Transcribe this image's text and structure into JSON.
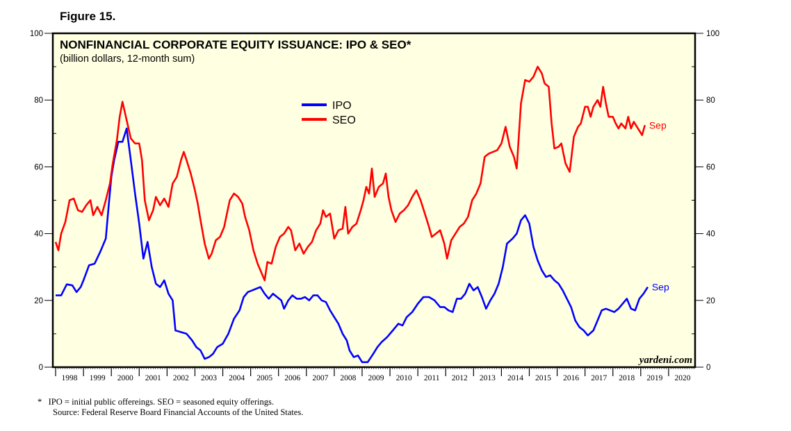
{
  "figure_label": "Figure 15.",
  "footnote": "*   IPO = initial public offereings. SEO = seasoned equity offerings.",
  "source": "Source: Federal Reserve Board Financial Accounts of the United States.",
  "watermark": "yardeni.com",
  "colors": {
    "plot_bg": "#ffffe1",
    "ipo": "#0000ff",
    "seo": "#ff0000",
    "frame": "#000000"
  },
  "chart_data": {
    "type": "line",
    "title": "NONFINANCIAL CORPORATE EQUITY ISSUANCE: IPO & SEO*",
    "subtitle": "(billion dollars, 12-month sum)",
    "xlabel": "",
    "ylabel": "",
    "xlim": [
      1997.9,
      2020.95
    ],
    "ylim": [
      0,
      100
    ],
    "y_ticks": [
      0,
      20,
      40,
      60,
      80,
      100
    ],
    "x_tick_labels": [
      "1998",
      "1999",
      "2000",
      "2001",
      "2002",
      "2003",
      "2004",
      "2005",
      "2006",
      "2007",
      "2008",
      "2009",
      "2010",
      "2011",
      "2012",
      "2013",
      "2014",
      "2015",
      "2016",
      "2017",
      "2018",
      "2019",
      "2020"
    ],
    "legend": [
      "IPO",
      "SEO"
    ],
    "legend_position": "top-center",
    "series": [
      {
        "name": "IPO",
        "end_label": "Sep",
        "points": [
          [
            1998.0,
            21.5
          ],
          [
            1998.2,
            21.5
          ],
          [
            1998.4,
            24.8
          ],
          [
            1998.6,
            24.5
          ],
          [
            1998.75,
            22.5
          ],
          [
            1998.9,
            24
          ],
          [
            1999.0,
            26
          ],
          [
            1999.2,
            30.5
          ],
          [
            1999.4,
            31
          ],
          [
            1999.6,
            34.5
          ],
          [
            1999.8,
            38.5
          ],
          [
            1999.9,
            48
          ],
          [
            2000.0,
            57
          ],
          [
            2000.1,
            62
          ],
          [
            2000.25,
            67.5
          ],
          [
            2000.4,
            67.5
          ],
          [
            2000.55,
            71.5
          ],
          [
            2000.7,
            62
          ],
          [
            2000.85,
            52
          ],
          [
            2001.0,
            43
          ],
          [
            2001.15,
            32.5
          ],
          [
            2001.3,
            37.5
          ],
          [
            2001.45,
            30
          ],
          [
            2001.6,
            25
          ],
          [
            2001.75,
            24
          ],
          [
            2001.9,
            26
          ],
          [
            2002.05,
            22
          ],
          [
            2002.2,
            20
          ],
          [
            2002.3,
            11
          ],
          [
            2002.5,
            10.5
          ],
          [
            2002.7,
            10
          ],
          [
            2002.9,
            8
          ],
          [
            2003.05,
            6
          ],
          [
            2003.2,
            5
          ],
          [
            2003.35,
            2.5
          ],
          [
            2003.5,
            3
          ],
          [
            2003.65,
            4
          ],
          [
            2003.8,
            6
          ],
          [
            2004.0,
            7
          ],
          [
            2004.2,
            10
          ],
          [
            2004.4,
            14.5
          ],
          [
            2004.6,
            17
          ],
          [
            2004.75,
            21
          ],
          [
            2004.9,
            22.5
          ],
          [
            2005.05,
            23
          ],
          [
            2005.2,
            23.5
          ],
          [
            2005.35,
            24
          ],
          [
            2005.5,
            22
          ],
          [
            2005.65,
            20.5
          ],
          [
            2005.8,
            22
          ],
          [
            2005.95,
            21
          ],
          [
            2006.1,
            20
          ],
          [
            2006.2,
            17.5
          ],
          [
            2006.35,
            20
          ],
          [
            2006.5,
            21.5
          ],
          [
            2006.65,
            20.5
          ],
          [
            2006.8,
            20.5
          ],
          [
            2006.95,
            21
          ],
          [
            2007.1,
            20
          ],
          [
            2007.25,
            21.5
          ],
          [
            2007.4,
            21.5
          ],
          [
            2007.55,
            20
          ],
          [
            2007.7,
            19.5
          ],
          [
            2007.85,
            17
          ],
          [
            2008.0,
            15
          ],
          [
            2008.15,
            13
          ],
          [
            2008.3,
            10
          ],
          [
            2008.45,
            8
          ],
          [
            2008.55,
            5
          ],
          [
            2008.7,
            3
          ],
          [
            2008.85,
            3.5
          ],
          [
            2009.0,
            1.5
          ],
          [
            2009.2,
            1.5
          ],
          [
            2009.4,
            4
          ],
          [
            2009.55,
            6
          ],
          [
            2009.7,
            7.5
          ],
          [
            2009.9,
            9
          ],
          [
            2010.1,
            11
          ],
          [
            2010.3,
            13
          ],
          [
            2010.45,
            12.5
          ],
          [
            2010.6,
            15
          ],
          [
            2010.8,
            16.5
          ],
          [
            2011.0,
            19
          ],
          [
            2011.2,
            21
          ],
          [
            2011.4,
            21
          ],
          [
            2011.6,
            20
          ],
          [
            2011.8,
            18
          ],
          [
            2011.95,
            18
          ],
          [
            2012.1,
            17
          ],
          [
            2012.25,
            16.5
          ],
          [
            2012.4,
            20.5
          ],
          [
            2012.55,
            20.5
          ],
          [
            2012.7,
            22
          ],
          [
            2012.85,
            25
          ],
          [
            2013.0,
            23
          ],
          [
            2013.15,
            24
          ],
          [
            2013.3,
            21
          ],
          [
            2013.45,
            17.5
          ],
          [
            2013.6,
            20
          ],
          [
            2013.75,
            22
          ],
          [
            2013.9,
            25
          ],
          [
            2014.05,
            30
          ],
          [
            2014.2,
            37
          ],
          [
            2014.4,
            38.5
          ],
          [
            2014.55,
            40
          ],
          [
            2014.7,
            44
          ],
          [
            2014.85,
            45.5
          ],
          [
            2015.0,
            43
          ],
          [
            2015.15,
            36
          ],
          [
            2015.3,
            32
          ],
          [
            2015.45,
            29
          ],
          [
            2015.6,
            27
          ],
          [
            2015.75,
            27.5
          ],
          [
            2015.9,
            26
          ],
          [
            2016.05,
            25
          ],
          [
            2016.2,
            23
          ],
          [
            2016.35,
            20.5
          ],
          [
            2016.5,
            18
          ],
          [
            2016.65,
            14
          ],
          [
            2016.8,
            12
          ],
          [
            2016.95,
            11
          ],
          [
            2017.1,
            9.5
          ],
          [
            2017.3,
            11
          ],
          [
            2017.45,
            14
          ],
          [
            2017.6,
            17
          ],
          [
            2017.75,
            17.5
          ],
          [
            2017.9,
            17
          ],
          [
            2018.05,
            16.5
          ],
          [
            2018.2,
            17.5
          ],
          [
            2018.35,
            19
          ],
          [
            2018.5,
            20.5
          ],
          [
            2018.65,
            17.5
          ],
          [
            2018.8,
            17
          ],
          [
            2018.95,
            20.5
          ],
          [
            2019.1,
            22
          ],
          [
            2019.25,
            24
          ]
        ]
      },
      {
        "name": "SEO",
        "end_label": "Sep",
        "points": [
          [
            1998.0,
            37.5
          ],
          [
            1998.1,
            35
          ],
          [
            1998.2,
            40
          ],
          [
            1998.35,
            43.5
          ],
          [
            1998.5,
            50
          ],
          [
            1998.65,
            50.5
          ],
          [
            1998.8,
            47
          ],
          [
            1998.95,
            46.5
          ],
          [
            1999.1,
            48.5
          ],
          [
            1999.25,
            50
          ],
          [
            1999.35,
            45.5
          ],
          [
            1999.5,
            48
          ],
          [
            1999.65,
            45.5
          ],
          [
            1999.8,
            50
          ],
          [
            1999.95,
            55
          ],
          [
            2000.05,
            61
          ],
          [
            2000.2,
            68
          ],
          [
            2000.3,
            75
          ],
          [
            2000.4,
            79.5
          ],
          [
            2000.55,
            74
          ],
          [
            2000.7,
            68.5
          ],
          [
            2000.85,
            67
          ],
          [
            2001.0,
            67
          ],
          [
            2001.1,
            62
          ],
          [
            2001.2,
            50
          ],
          [
            2001.35,
            44
          ],
          [
            2001.5,
            47
          ],
          [
            2001.6,
            51
          ],
          [
            2001.75,
            48.5
          ],
          [
            2001.9,
            50.5
          ],
          [
            2002.05,
            48
          ],
          [
            2002.2,
            55
          ],
          [
            2002.35,
            57
          ],
          [
            2002.5,
            62
          ],
          [
            2002.6,
            64.5
          ],
          [
            2002.7,
            62
          ],
          [
            2002.85,
            58
          ],
          [
            2003.0,
            53
          ],
          [
            2003.1,
            49
          ],
          [
            2003.2,
            44
          ],
          [
            2003.35,
            37
          ],
          [
            2003.5,
            32.5
          ],
          [
            2003.6,
            34
          ],
          [
            2003.75,
            38
          ],
          [
            2003.9,
            39
          ],
          [
            2004.05,
            42
          ],
          [
            2004.15,
            46
          ],
          [
            2004.25,
            50
          ],
          [
            2004.4,
            52
          ],
          [
            2004.55,
            51
          ],
          [
            2004.7,
            49
          ],
          [
            2004.8,
            45
          ],
          [
            2004.95,
            41
          ],
          [
            2005.1,
            35
          ],
          [
            2005.25,
            31
          ],
          [
            2005.4,
            28
          ],
          [
            2005.5,
            26
          ],
          [
            2005.6,
            31.5
          ],
          [
            2005.75,
            31
          ],
          [
            2005.9,
            36
          ],
          [
            2006.05,
            39
          ],
          [
            2006.2,
            40
          ],
          [
            2006.35,
            42
          ],
          [
            2006.45,
            41
          ],
          [
            2006.6,
            35
          ],
          [
            2006.75,
            37
          ],
          [
            2006.9,
            34
          ],
          [
            2007.05,
            36
          ],
          [
            2007.2,
            37.5
          ],
          [
            2007.35,
            41
          ],
          [
            2007.5,
            43
          ],
          [
            2007.6,
            47
          ],
          [
            2007.7,
            45
          ],
          [
            2007.85,
            46
          ],
          [
            2008.0,
            38.5
          ],
          [
            2008.15,
            41
          ],
          [
            2008.3,
            41.5
          ],
          [
            2008.4,
            48
          ],
          [
            2008.5,
            40
          ],
          [
            2008.65,
            42
          ],
          [
            2008.8,
            43
          ],
          [
            2008.95,
            47
          ],
          [
            2009.05,
            50
          ],
          [
            2009.15,
            54
          ],
          [
            2009.25,
            52
          ],
          [
            2009.35,
            59.5
          ],
          [
            2009.45,
            51
          ],
          [
            2009.6,
            54
          ],
          [
            2009.75,
            55
          ],
          [
            2009.85,
            58
          ],
          [
            2009.95,
            51
          ],
          [
            2010.05,
            47
          ],
          [
            2010.2,
            43.5
          ],
          [
            2010.35,
            46
          ],
          [
            2010.5,
            47
          ],
          [
            2010.65,
            48.5
          ],
          [
            2010.8,
            51
          ],
          [
            2010.95,
            53
          ],
          [
            2011.1,
            50
          ],
          [
            2011.25,
            46
          ],
          [
            2011.4,
            42
          ],
          [
            2011.5,
            39
          ],
          [
            2011.65,
            40
          ],
          [
            2011.8,
            41
          ],
          [
            2011.95,
            37
          ],
          [
            2012.05,
            32.5
          ],
          [
            2012.2,
            38
          ],
          [
            2012.35,
            40
          ],
          [
            2012.5,
            42
          ],
          [
            2012.65,
            43
          ],
          [
            2012.8,
            45
          ],
          [
            2012.95,
            50
          ],
          [
            2013.1,
            52
          ],
          [
            2013.25,
            55
          ],
          [
            2013.4,
            63
          ],
          [
            2013.55,
            64
          ],
          [
            2013.7,
            64.5
          ],
          [
            2013.85,
            65
          ],
          [
            2014.0,
            67
          ],
          [
            2014.15,
            72
          ],
          [
            2014.3,
            66
          ],
          [
            2014.45,
            63
          ],
          [
            2014.55,
            59.5
          ],
          [
            2014.7,
            79
          ],
          [
            2014.85,
            86
          ],
          [
            2015.0,
            85.5
          ],
          [
            2015.15,
            87
          ],
          [
            2015.3,
            90
          ],
          [
            2015.45,
            88
          ],
          [
            2015.55,
            85
          ],
          [
            2015.7,
            84
          ],
          [
            2015.8,
            73
          ],
          [
            2015.9,
            65.5
          ],
          [
            2016.05,
            66
          ],
          [
            2016.15,
            67
          ],
          [
            2016.3,
            61
          ],
          [
            2016.45,
            58.5
          ],
          [
            2016.6,
            69
          ],
          [
            2016.75,
            72
          ],
          [
            2016.85,
            73
          ],
          [
            2017.0,
            78
          ],
          [
            2017.1,
            78
          ],
          [
            2017.2,
            75
          ],
          [
            2017.3,
            78
          ],
          [
            2017.45,
            80
          ],
          [
            2017.55,
            78
          ],
          [
            2017.65,
            84
          ],
          [
            2017.75,
            79
          ],
          [
            2017.85,
            75
          ],
          [
            2018.0,
            75
          ],
          [
            2018.1,
            73
          ],
          [
            2018.2,
            71.5
          ],
          [
            2018.3,
            73
          ],
          [
            2018.45,
            71.5
          ],
          [
            2018.55,
            75
          ],
          [
            2018.65,
            71.5
          ],
          [
            2018.75,
            73.5
          ],
          [
            2018.9,
            71.5
          ],
          [
            2019.05,
            69.5
          ],
          [
            2019.15,
            72.5
          ]
        ]
      }
    ]
  }
}
